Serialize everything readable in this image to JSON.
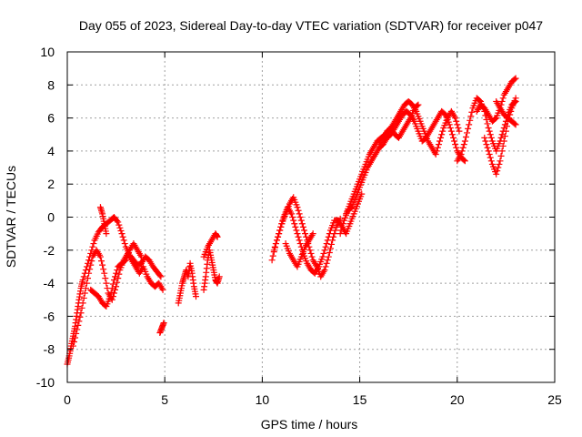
{
  "chart_data": {
    "type": "scatter",
    "title": "Day 055 of 2023, Sidereal Day-to-day VTEC variation (SDTVAR) for receiver p047",
    "xlabel": "GPS time / hours",
    "ylabel": "SDTVAR / TECUs",
    "xlim": [
      0,
      25
    ],
    "ylim": [
      -10,
      10
    ],
    "xticks": [
      0,
      5,
      10,
      15,
      20,
      25
    ],
    "yticks": [
      -10,
      -8,
      -6,
      -4,
      -2,
      0,
      2,
      4,
      6,
      8,
      10
    ],
    "xtick_labels": [
      "0",
      "5",
      "10",
      "15",
      "20",
      "25"
    ],
    "ytick_labels": [
      "-10",
      "-8",
      "-6",
      "-4",
      "-2",
      "0",
      "2",
      "4",
      "6",
      "8",
      "10"
    ],
    "grid": true,
    "marker": "+",
    "color": "#ff0000",
    "series": [
      {
        "name": "SDTVAR",
        "segments": [
          {
            "x": [
              0.0,
              0.1,
              0.2,
              0.3,
              0.4,
              0.5,
              0.6,
              0.7,
              0.8,
              1.0,
              1.2,
              1.4,
              1.6,
              1.8,
              2.0,
              2.2,
              2.4,
              2.6,
              2.8,
              3.0,
              3.2,
              3.4,
              3.6,
              3.8,
              4.0,
              4.2,
              4.4,
              4.6,
              4.8
            ],
            "y": [
              -8.9,
              -8.4,
              -7.8,
              -7.2,
              -6.6,
              -5.8,
              -5.0,
              -4.3,
              -3.8,
              -3.0,
              -2.2,
              -1.4,
              -0.9,
              -0.6,
              -0.4,
              -0.2,
              0.0,
              -0.3,
              -1.0,
              -1.8,
              -2.3,
              -2.6,
              -2.9,
              -2.8,
              -2.4,
              -2.6,
              -3.0,
              -3.3,
              -3.6
            ]
          },
          {
            "x": [
              0.3,
              0.5,
              0.7,
              0.9,
              1.1,
              1.3,
              1.5,
              1.7,
              1.9,
              2.1,
              2.3,
              2.5,
              2.7,
              2.9,
              3.1,
              3.3,
              3.5,
              3.7,
              3.9,
              4.1,
              4.3,
              4.5,
              4.7,
              4.9
            ],
            "y": [
              -7.8,
              -6.8,
              -5.8,
              -4.6,
              -3.4,
              -2.4,
              -2.0,
              -2.4,
              -3.4,
              -4.6,
              -5.0,
              -4.2,
              -3.2,
              -2.6,
              -2.2,
              -2.6,
              -3.0,
              -3.4,
              -3.0,
              -3.6,
              -4.0,
              -4.2,
              -4.0,
              -4.4
            ]
          },
          {
            "x": [
              1.2,
              1.4,
              1.6,
              1.8,
              2.0,
              2.2,
              2.4,
              2.6,
              2.8,
              3.0,
              3.2,
              3.4,
              3.6,
              3.8
            ],
            "y": [
              -4.4,
              -4.6,
              -4.8,
              -5.2,
              -5.4,
              -4.8,
              -3.8,
              -3.0,
              -2.8,
              -2.6,
              -2.0,
              -1.6,
              -2.0,
              -2.4
            ]
          },
          {
            "x": [
              1.7,
              1.8,
              1.9,
              2.0
            ],
            "y": [
              0.6,
              0.2,
              -0.4,
              -1.0
            ]
          },
          {
            "x": [
              4.75,
              4.85,
              4.95
            ],
            "y": [
              -7.0,
              -6.7,
              -6.4
            ]
          },
          {
            "x": [
              5.7,
              5.8,
              5.9,
              6.0,
              6.1,
              6.2,
              6.3,
              6.4,
              6.5,
              6.6
            ],
            "y": [
              -5.2,
              -4.6,
              -4.0,
              -3.6,
              -3.2,
              -3.6,
              -2.8,
              -3.4,
              -4.2,
              -4.8
            ]
          },
          {
            "x": [
              7.0,
              7.1,
              7.2,
              7.3,
              7.4,
              7.5,
              7.6,
              7.7,
              7.8
            ],
            "y": [
              -4.4,
              -3.6,
              -2.6,
              -2.0,
              -2.6,
              -3.2,
              -3.8,
              -4.0,
              -3.6
            ]
          },
          {
            "x": [
              7.0,
              7.2,
              7.4,
              7.6,
              7.7
            ],
            "y": [
              -2.4,
              -1.8,
              -1.4,
              -1.0,
              -1.2
            ]
          },
          {
            "x": [
              10.5,
              10.7,
              10.9,
              11.1,
              11.3,
              11.5,
              11.7,
              11.9,
              12.1,
              12.3,
              12.5,
              12.7,
              12.9,
              13.1,
              13.3,
              13.5,
              13.7,
              13.9,
              14.1,
              14.3,
              14.5,
              14.7,
              14.9,
              15.1
            ],
            "y": [
              -2.6,
              -1.6,
              -0.8,
              0.0,
              0.6,
              0.2,
              -0.6,
              -1.4,
              -2.2,
              -2.8,
              -3.2,
              -3.4,
              -3.0,
              -2.4,
              -1.6,
              -0.8,
              -0.2,
              -0.2,
              -0.6,
              -1.0,
              -0.4,
              0.2,
              0.8,
              1.4
            ]
          },
          {
            "x": [
              10.6,
              10.8,
              11.0,
              11.2,
              11.4,
              11.6,
              11.8,
              12.0,
              12.2,
              12.4,
              12.6,
              12.8,
              13.0,
              13.2,
              13.4,
              13.6,
              13.8,
              14.0
            ],
            "y": [
              -2.0,
              -1.2,
              -0.4,
              0.2,
              0.8,
              1.2,
              0.6,
              -0.2,
              -1.0,
              -1.8,
              -2.6,
              -3.0,
              -3.6,
              -3.2,
              -2.4,
              -1.4,
              -0.6,
              -0.1
            ]
          },
          {
            "x": [
              11.2,
              11.4,
              11.6,
              11.8,
              12.0,
              12.2,
              12.4,
              12.6
            ],
            "y": [
              -1.6,
              -2.2,
              -2.6,
              -3.0,
              -2.4,
              -1.8,
              -1.4,
              -1.0
            ]
          },
          {
            "x": [
              14.0,
              14.2,
              14.4,
              14.6,
              14.8,
              15.0,
              15.2,
              15.4,
              15.6,
              15.8,
              16.0,
              16.2,
              16.4,
              16.6,
              16.8,
              17.0,
              17.2,
              17.4,
              17.6,
              17.8,
              18.0,
              18.2,
              18.4,
              18.6,
              18.8,
              19.0,
              19.2,
              19.4,
              19.6,
              19.8,
              20.0,
              20.2,
              20.4
            ],
            "y": [
              -1.0,
              -0.2,
              0.4,
              0.6,
              1.2,
              1.8,
              2.4,
              3.0,
              3.4,
              3.8,
              4.2,
              4.4,
              4.8,
              5.0,
              5.4,
              5.8,
              6.2,
              6.4,
              6.2,
              5.8,
              5.2,
              4.6,
              4.8,
              5.2,
              5.6,
              6.0,
              6.4,
              6.2,
              5.6,
              4.8,
              4.0,
              3.6,
              3.4
            ]
          },
          {
            "x": [
              14.3,
              14.5,
              14.7,
              14.9,
              15.1,
              15.3,
              15.5,
              15.7,
              15.9,
              16.1,
              16.3,
              16.5,
              16.7,
              16.9,
              17.1,
              17.3,
              17.5,
              17.7,
              17.9,
              18.1,
              18.3,
              18.5,
              18.7,
              18.9,
              19.1,
              19.3,
              19.5,
              19.7,
              19.9,
              20.1
            ],
            "y": [
              0.2,
              0.8,
              1.4,
              2.0,
              2.6,
              3.2,
              3.8,
              4.2,
              4.6,
              4.8,
              5.0,
              5.2,
              5.6,
              6.0,
              6.4,
              6.8,
              7.0,
              6.8,
              6.4,
              5.8,
              5.2,
              4.6,
              4.2,
              3.8,
              4.6,
              5.4,
              6.0,
              6.4,
              6.0,
              5.2
            ]
          },
          {
            "x": [
              16.0,
              16.2,
              16.4,
              16.6,
              16.8,
              17.0,
              17.2,
              17.4,
              17.6,
              17.8,
              18.0
            ],
            "y": [
              4.4,
              4.8,
              5.2,
              5.4,
              5.0,
              4.8,
              5.2,
              5.6,
              6.0,
              6.6,
              6.8
            ]
          },
          {
            "x": [
              20.0,
              20.2,
              20.4,
              20.6,
              20.8,
              21.0,
              21.2,
              21.4,
              21.6,
              21.8,
              22.0,
              22.2,
              22.4,
              22.6,
              22.8,
              23.0
            ],
            "y": [
              3.4,
              3.8,
              4.6,
              5.6,
              6.6,
              7.2,
              7.0,
              6.4,
              5.4,
              4.6,
              4.0,
              4.6,
              5.4,
              6.2,
              6.8,
              7.0
            ]
          },
          {
            "x": [
              21.4,
              21.6,
              21.8,
              22.0,
              22.2,
              22.4,
              22.6,
              22.8,
              23.0
            ],
            "y": [
              4.8,
              4.0,
              3.2,
              2.6,
              3.4,
              4.6,
              5.8,
              6.6,
              7.2
            ]
          },
          {
            "x": [
              21.0,
              21.2,
              21.4,
              21.6,
              21.8,
              22.0,
              22.2,
              22.4,
              22.6,
              22.8,
              23.0
            ],
            "y": [
              6.4,
              6.8,
              6.6,
              6.2,
              5.8,
              6.0,
              6.6,
              7.4,
              7.8,
              8.2,
              8.4
            ]
          },
          {
            "x": [
              22.0,
              22.2,
              22.4,
              22.6,
              22.8,
              23.0
            ],
            "y": [
              7.0,
              6.6,
              6.2,
              6.0,
              5.8,
              5.6
            ]
          }
        ]
      }
    ]
  }
}
